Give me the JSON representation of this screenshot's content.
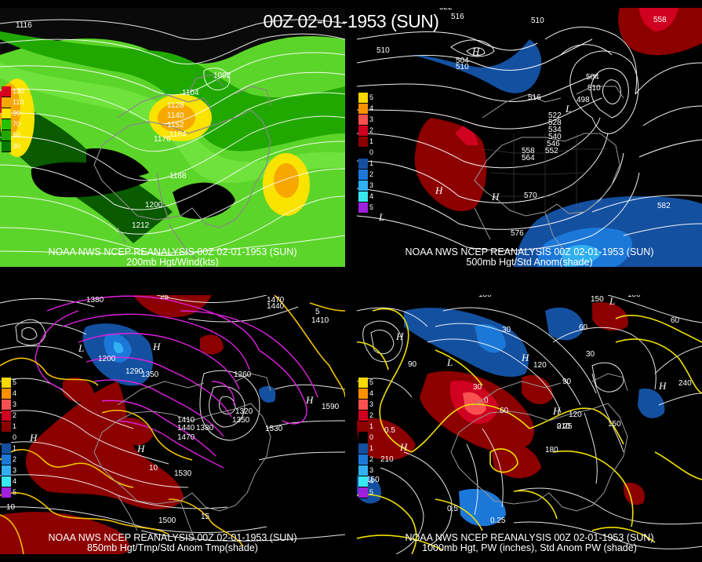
{
  "main_title": "00Z 02-01-1953 (SUN)",
  "panels": [
    {
      "caption_line1": "NOAA NWS NCEP REANALYSIS 00Z 02-01-1953 (SUN)",
      "caption_line2": "200mb Hgt/Wind(kts)",
      "legend": [
        "130",
        "110",
        "90",
        "70",
        "50",
        "30"
      ],
      "legend_colors": [
        "#d9001f",
        "#f6a800",
        "#fbe300",
        "#21c200",
        "#21a800",
        "#007c00"
      ],
      "contour_labels": [
        "1116",
        "1104",
        "1092",
        "1128",
        "1140",
        "1152",
        "1164",
        "1176",
        "1188",
        "1200",
        "1212"
      ]
    },
    {
      "caption_line1": "NOAA NWS NCEP REANALYSIS 00Z 02-01-1953 (SUN)",
      "caption_line2": "500mb Hgt/Std Anom(shade)",
      "legend": [
        "5",
        "4",
        "3",
        "2",
        "1",
        "0",
        "1",
        "2",
        "3",
        "4",
        "5"
      ],
      "legend_colors": [
        "#f8d800",
        "#f89000",
        "#f85050",
        "#d00020",
        "#8c0000",
        "#000000",
        "#1450a0",
        "#1c78d8",
        "#30b0f0",
        "#38e8f0",
        "#a020e0"
      ],
      "contour_labels": [
        "522",
        "516",
        "510",
        "510",
        "504",
        "498",
        "504",
        "510",
        "516",
        "522",
        "528",
        "534",
        "540",
        "546",
        "552",
        "558",
        "564",
        "570",
        "576",
        "582",
        "558",
        "498",
        "H",
        "H",
        "L",
        "L"
      ]
    },
    {
      "caption_line1": "NOAA NWS NCEP REANALYSIS 00Z 02-01-1953 (SUN)",
      "caption_line2": "850mb Hgt/Tmp/Std Anom Tmp(shade)",
      "legend": [
        "5",
        "4",
        "3",
        "2",
        "1",
        "0",
        "1",
        "2",
        "3",
        "4",
        "5"
      ],
      "legend_colors": [
        "#f8d800",
        "#f89000",
        "#f85050",
        "#d00020",
        "#8c0000",
        "#000000",
        "#1450a0",
        "#1c78d8",
        "#30b0f0",
        "#38e8f0",
        "#a020e0"
      ],
      "contour_labels": [
        "1380",
        "1470",
        "1440",
        "1410",
        "1200",
        "1290",
        "1350",
        "1410",
        "1440",
        "1380",
        "1470",
        "1320",
        "1350",
        "1530",
        "1590",
        "1530",
        "1500",
        "1260",
        "25",
        "5",
        "10",
        "10",
        "15"
      ]
    },
    {
      "caption_line1": "NOAA NWS NCEP REANALYSIS 00Z 02-01-1953 (SUN)",
      "caption_line2": "1000mb Hgt, PW (inches), Std Anom PW (shade)",
      "legend": [
        "5",
        "4",
        "3",
        "2",
        "1",
        "0",
        "1",
        "2",
        "3",
        "4",
        "5"
      ],
      "legend_colors": [
        "#f8d800",
        "#f89000",
        "#f85050",
        "#d00020",
        "#8c0000",
        "#000000",
        "#1450a0",
        "#1c78d8",
        "#30b0f0",
        "#38e8f0",
        "#a020e0"
      ],
      "contour_labels": [
        "180",
        "150",
        "180",
        "60",
        "60",
        "30",
        "90",
        "120",
        "90",
        "30",
        "0",
        "60",
        "210",
        "240",
        "180",
        "150",
        "120",
        "0.5",
        "0.25",
        "0.25",
        "0.5",
        "210",
        "150",
        "30"
      ]
    }
  ]
}
